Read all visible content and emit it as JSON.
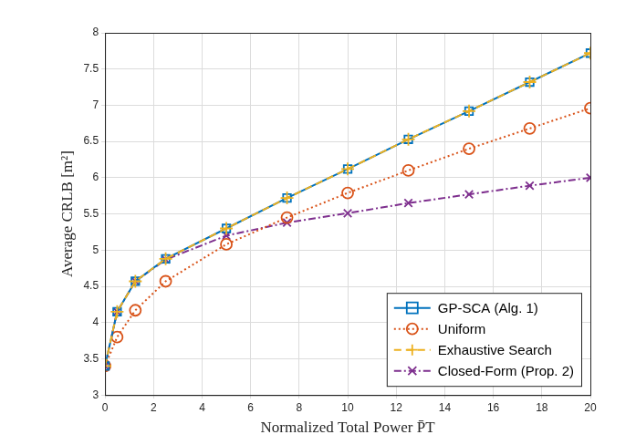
{
  "chart_data": {
    "type": "line",
    "x_label": "Normalized Total Power P̄T",
    "y_label": "Average CRLB [m²]",
    "x": [
      0,
      0.5,
      1.25,
      2.5,
      5,
      7.5,
      10,
      12.5,
      15,
      17.5,
      20
    ],
    "series": [
      {
        "name": "GP-SCA (Alg. 1)",
        "color": "#0072BD",
        "marker": "square",
        "line_style": "solid",
        "values": [
          3.4,
          4.15,
          4.57,
          4.88,
          5.3,
          5.72,
          6.12,
          6.53,
          6.92,
          7.32,
          7.72
        ]
      },
      {
        "name": "Uniform",
        "color": "#D95319",
        "marker": "circle",
        "line_style": "dotted",
        "values": [
          3.4,
          3.8,
          4.17,
          4.57,
          5.08,
          5.45,
          5.79,
          6.1,
          6.4,
          6.68,
          6.96
        ]
      },
      {
        "name": "Exhaustive Search",
        "color": "#EDB120",
        "marker": "plus",
        "line_style": "dashed",
        "values": [
          3.4,
          4.15,
          4.57,
          4.88,
          5.3,
          5.72,
          6.12,
          6.53,
          6.92,
          7.32,
          7.72
        ]
      },
      {
        "name": "Closed-Form (Prop. 2)",
        "color": "#7E2F8E",
        "marker": "x",
        "line_style": "dashdot",
        "values": [
          3.4,
          4.15,
          4.57,
          4.87,
          5.2,
          5.38,
          5.51,
          5.65,
          5.77,
          5.89,
          6.0
        ]
      }
    ],
    "xlim": [
      0,
      20
    ],
    "xticks": [
      0,
      2,
      4,
      6,
      8,
      10,
      12,
      14,
      16,
      18,
      20
    ],
    "ylim": [
      3,
      8
    ],
    "yticks": [
      3,
      3.5,
      4,
      4.5,
      5,
      5.5,
      6,
      6.5,
      7,
      7.5,
      8
    ],
    "grid": true,
    "legend": "lower right"
  }
}
